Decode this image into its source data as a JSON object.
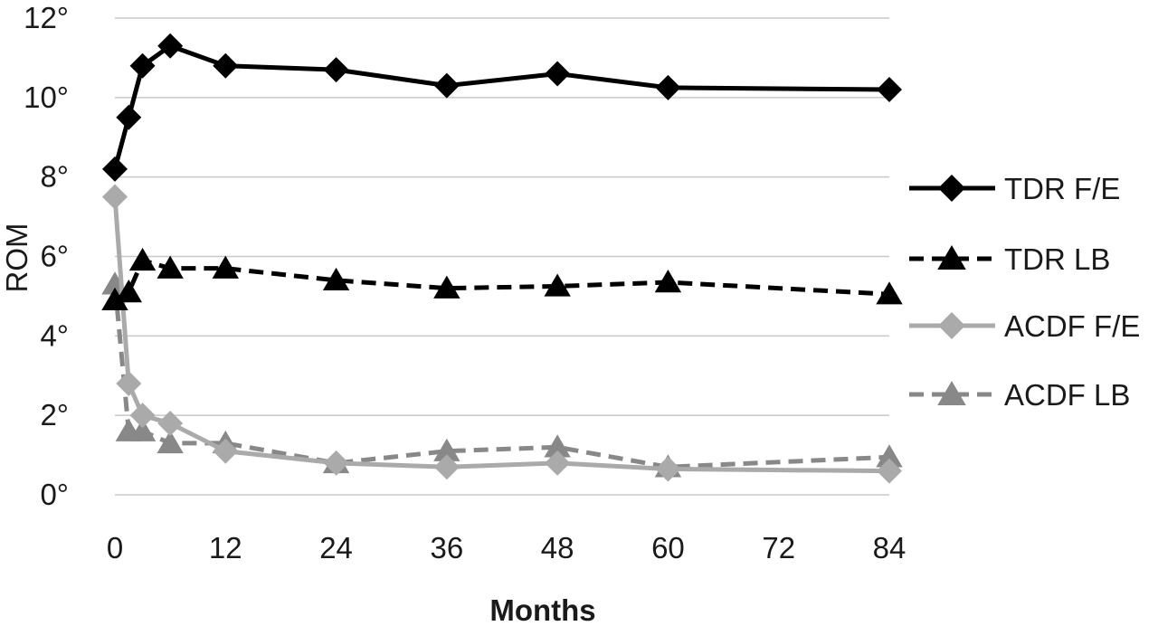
{
  "chart_data": {
    "type": "line",
    "xlabel": "Months",
    "ylabel": "ROM",
    "xlim": [
      0,
      84
    ],
    "ylim": [
      0,
      12
    ],
    "x_ticks": [
      "0",
      "12",
      "24",
      "36",
      "48",
      "60",
      "72",
      "84"
    ],
    "y_ticks": [
      "0°",
      "2°",
      "4°",
      "6°",
      "8°",
      "10°",
      "12°"
    ],
    "grid": "horizontal",
    "legend_position": "right",
    "series": [
      {
        "name": "TDR F/E",
        "color": "#000000",
        "dash": "solid",
        "marker": "diamond",
        "x": [
          0,
          1.5,
          3,
          6,
          12,
          24,
          36,
          48,
          60,
          84
        ],
        "y": [
          8.2,
          9.5,
          10.8,
          11.3,
          10.8,
          10.7,
          10.3,
          10.6,
          10.25,
          10.2
        ]
      },
      {
        "name": "TDR LB",
        "color": "#000000",
        "dash": "dashed",
        "marker": "triangle",
        "x": [
          0,
          1.5,
          3,
          6,
          12,
          24,
          36,
          48,
          60,
          84
        ],
        "y": [
          4.9,
          5.1,
          5.9,
          5.7,
          5.7,
          5.4,
          5.2,
          5.25,
          5.35,
          5.05
        ]
      },
      {
        "name": "ACDF F/E",
        "color": "#aaaaaa",
        "dash": "solid",
        "marker": "diamond",
        "x": [
          0,
          1.5,
          3,
          6,
          12,
          24,
          36,
          48,
          60,
          84
        ],
        "y": [
          7.5,
          2.8,
          2.0,
          1.8,
          1.1,
          0.8,
          0.7,
          0.8,
          0.65,
          0.6
        ]
      },
      {
        "name": "ACDF LB",
        "color": "#888888",
        "dash": "dashed",
        "marker": "triangle",
        "x": [
          0,
          1.5,
          3,
          6,
          12,
          24,
          36,
          48,
          60,
          84
        ],
        "y": [
          5.3,
          1.6,
          1.6,
          1.3,
          1.3,
          0.8,
          1.1,
          1.2,
          0.7,
          0.95
        ]
      }
    ]
  }
}
